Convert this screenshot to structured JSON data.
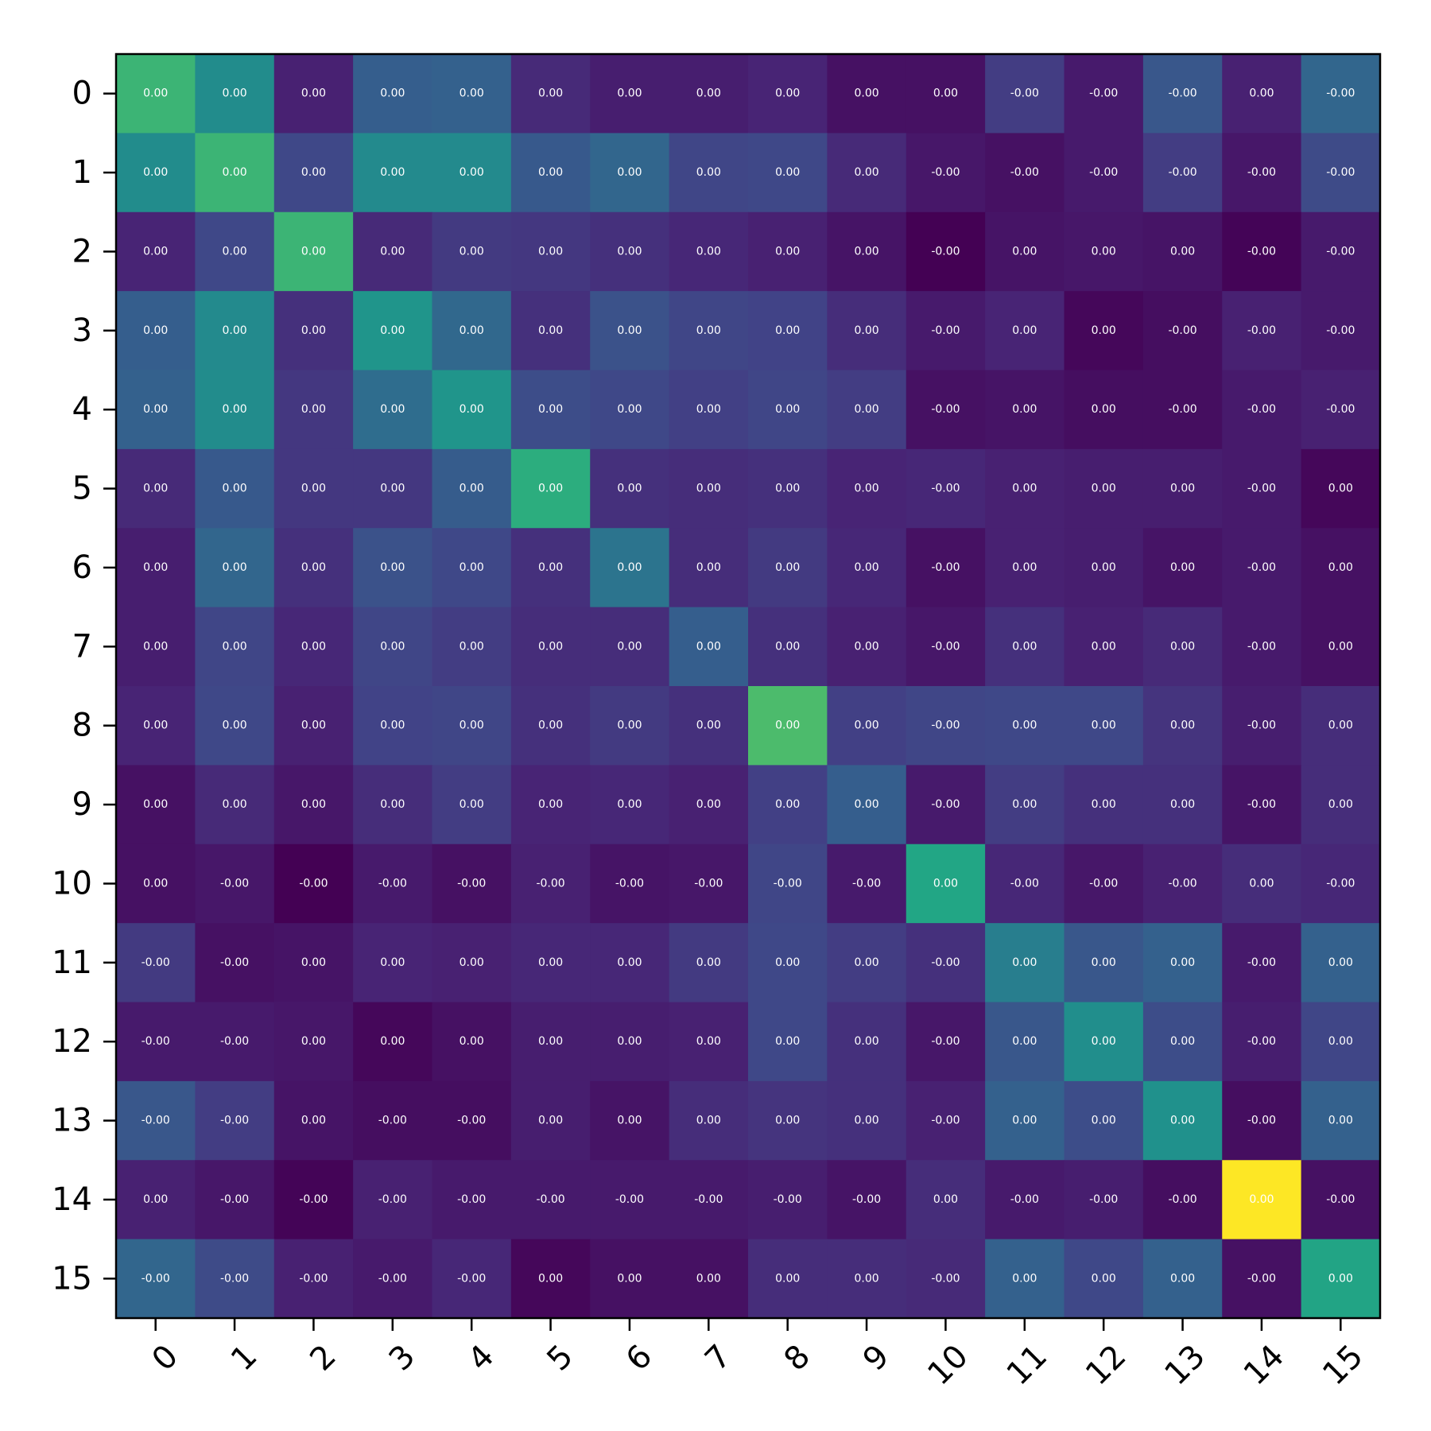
{
  "chart_data": {
    "type": "heatmap",
    "colormap": "viridis",
    "x_ticks": [
      "0",
      "1",
      "2",
      "3",
      "4",
      "5",
      "6",
      "7",
      "8",
      "9",
      "10",
      "11",
      "12",
      "13",
      "14",
      "15"
    ],
    "y_ticks": [
      "0",
      "1",
      "2",
      "3",
      "4",
      "5",
      "6",
      "7",
      "8",
      "9",
      "10",
      "11",
      "12",
      "13",
      "14",
      "15"
    ],
    "color_scale": [
      [
        0.62,
        0.46,
        0.05,
        0.27,
        0.28,
        0.08,
        0.04,
        0.04,
        0.06,
        0.0,
        0.0,
        0.14,
        0.03,
        0.24,
        0.05,
        0.3
      ],
      [
        0.46,
        0.62,
        0.18,
        0.45,
        0.45,
        0.25,
        0.3,
        0.17,
        0.18,
        0.08,
        0.02,
        0.0,
        0.03,
        0.14,
        0.02,
        0.19
      ],
      [
        0.06,
        0.18,
        0.62,
        0.08,
        0.13,
        0.12,
        0.1,
        0.07,
        0.05,
        0.01,
        -0.05,
        0.01,
        0.02,
        0.01,
        -0.04,
        0.03
      ],
      [
        0.27,
        0.45,
        0.1,
        0.5,
        0.31,
        0.1,
        0.22,
        0.17,
        0.16,
        0.09,
        0.03,
        0.06,
        -0.03,
        -0.01,
        0.05,
        0.03
      ],
      [
        0.28,
        0.46,
        0.12,
        0.33,
        0.5,
        0.2,
        0.18,
        0.15,
        0.17,
        0.14,
        0.0,
        0.01,
        -0.01,
        -0.01,
        0.03,
        0.05
      ],
      [
        0.08,
        0.25,
        0.12,
        0.12,
        0.26,
        0.6,
        0.1,
        0.09,
        0.1,
        0.06,
        0.07,
        0.05,
        0.04,
        0.04,
        0.03,
        -0.03
      ],
      [
        0.04,
        0.3,
        0.1,
        0.22,
        0.18,
        0.1,
        0.36,
        0.09,
        0.13,
        0.07,
        0.0,
        0.05,
        0.04,
        0.01,
        0.03,
        0.0
      ],
      [
        0.04,
        0.17,
        0.07,
        0.17,
        0.14,
        0.09,
        0.09,
        0.27,
        0.1,
        0.05,
        0.02,
        0.1,
        0.05,
        0.08,
        0.03,
        0.0
      ],
      [
        0.06,
        0.18,
        0.05,
        0.16,
        0.17,
        0.1,
        0.13,
        0.1,
        0.64,
        0.15,
        0.17,
        0.18,
        0.18,
        0.11,
        0.04,
        0.09
      ],
      [
        0.0,
        0.08,
        0.02,
        0.09,
        0.14,
        0.06,
        0.07,
        0.05,
        0.15,
        0.27,
        0.03,
        0.14,
        0.1,
        0.1,
        0.01,
        0.09
      ],
      [
        0.0,
        0.02,
        -0.05,
        0.03,
        0.0,
        0.05,
        0.01,
        0.02,
        0.17,
        0.03,
        0.58,
        0.07,
        0.02,
        0.05,
        0.09,
        0.07
      ],
      [
        0.13,
        0.0,
        0.01,
        0.06,
        0.05,
        0.07,
        0.07,
        0.13,
        0.18,
        0.14,
        0.1,
        0.4,
        0.24,
        0.28,
        0.03,
        0.28
      ],
      [
        0.03,
        0.03,
        0.02,
        -0.03,
        0.0,
        0.04,
        0.04,
        0.05,
        0.18,
        0.1,
        0.02,
        0.24,
        0.47,
        0.2,
        0.04,
        0.17
      ],
      [
        0.24,
        0.14,
        0.01,
        -0.01,
        -0.01,
        0.04,
        0.01,
        0.09,
        0.11,
        0.1,
        0.05,
        0.28,
        0.2,
        0.48,
        -0.01,
        0.28
      ],
      [
        0.05,
        0.02,
        -0.04,
        0.05,
        0.03,
        0.03,
        0.03,
        0.03,
        0.04,
        0.01,
        0.09,
        0.03,
        0.04,
        -0.01,
        0.8,
        0.0
      ],
      [
        0.3,
        0.19,
        0.05,
        0.03,
        0.07,
        -0.03,
        0.0,
        0.0,
        0.09,
        0.09,
        0.08,
        0.28,
        0.18,
        0.28,
        0.0,
        0.57
      ]
    ],
    "color_range": [
      -0.05,
      0.8
    ],
    "cell_labels": [
      [
        "0.00",
        "0.00",
        "0.00",
        "0.00",
        "0.00",
        "0.00",
        "0.00",
        "0.00",
        "0.00",
        "0.00",
        "0.00",
        "-0.00",
        "-0.00",
        "-0.00",
        "0.00",
        "-0.00"
      ],
      [
        "0.00",
        "0.00",
        "0.00",
        "0.00",
        "0.00",
        "0.00",
        "0.00",
        "0.00",
        "0.00",
        "0.00",
        "-0.00",
        "-0.00",
        "-0.00",
        "-0.00",
        "-0.00",
        "-0.00"
      ],
      [
        "0.00",
        "0.00",
        "0.00",
        "0.00",
        "0.00",
        "0.00",
        "0.00",
        "0.00",
        "0.00",
        "0.00",
        "-0.00",
        "0.00",
        "0.00",
        "0.00",
        "-0.00",
        "-0.00"
      ],
      [
        "0.00",
        "0.00",
        "0.00",
        "0.00",
        "0.00",
        "0.00",
        "0.00",
        "0.00",
        "0.00",
        "0.00",
        "-0.00",
        "0.00",
        "0.00",
        "-0.00",
        "-0.00",
        "-0.00"
      ],
      [
        "0.00",
        "0.00",
        "0.00",
        "0.00",
        "0.00",
        "0.00",
        "0.00",
        "0.00",
        "0.00",
        "0.00",
        "-0.00",
        "0.00",
        "0.00",
        "-0.00",
        "-0.00",
        "-0.00"
      ],
      [
        "0.00",
        "0.00",
        "0.00",
        "0.00",
        "0.00",
        "0.00",
        "0.00",
        "0.00",
        "0.00",
        "0.00",
        "-0.00",
        "0.00",
        "0.00",
        "0.00",
        "-0.00",
        "0.00"
      ],
      [
        "0.00",
        "0.00",
        "0.00",
        "0.00",
        "0.00",
        "0.00",
        "0.00",
        "0.00",
        "0.00",
        "0.00",
        "-0.00",
        "0.00",
        "0.00",
        "0.00",
        "-0.00",
        "0.00"
      ],
      [
        "0.00",
        "0.00",
        "0.00",
        "0.00",
        "0.00",
        "0.00",
        "0.00",
        "0.00",
        "0.00",
        "0.00",
        "-0.00",
        "0.00",
        "0.00",
        "0.00",
        "-0.00",
        "0.00"
      ],
      [
        "0.00",
        "0.00",
        "0.00",
        "0.00",
        "0.00",
        "0.00",
        "0.00",
        "0.00",
        "0.00",
        "0.00",
        "-0.00",
        "0.00",
        "0.00",
        "0.00",
        "-0.00",
        "0.00"
      ],
      [
        "0.00",
        "0.00",
        "0.00",
        "0.00",
        "0.00",
        "0.00",
        "0.00",
        "0.00",
        "0.00",
        "0.00",
        "-0.00",
        "0.00",
        "0.00",
        "0.00",
        "-0.00",
        "0.00"
      ],
      [
        "0.00",
        "-0.00",
        "-0.00",
        "-0.00",
        "-0.00",
        "-0.00",
        "-0.00",
        "-0.00",
        "-0.00",
        "-0.00",
        "0.00",
        "-0.00",
        "-0.00",
        "-0.00",
        "0.00",
        "-0.00"
      ],
      [
        "-0.00",
        "-0.00",
        "0.00",
        "0.00",
        "0.00",
        "0.00",
        "0.00",
        "0.00",
        "0.00",
        "0.00",
        "-0.00",
        "0.00",
        "0.00",
        "0.00",
        "-0.00",
        "0.00"
      ],
      [
        "-0.00",
        "-0.00",
        "0.00",
        "0.00",
        "0.00",
        "0.00",
        "0.00",
        "0.00",
        "0.00",
        "0.00",
        "-0.00",
        "0.00",
        "0.00",
        "0.00",
        "-0.00",
        "0.00"
      ],
      [
        "-0.00",
        "-0.00",
        "0.00",
        "-0.00",
        "-0.00",
        "0.00",
        "0.00",
        "0.00",
        "0.00",
        "0.00",
        "-0.00",
        "0.00",
        "0.00",
        "0.00",
        "-0.00",
        "0.00"
      ],
      [
        "0.00",
        "-0.00",
        "-0.00",
        "-0.00",
        "-0.00",
        "-0.00",
        "-0.00",
        "-0.00",
        "-0.00",
        "-0.00",
        "0.00",
        "-0.00",
        "-0.00",
        "-0.00",
        "0.00",
        "-0.00"
      ],
      [
        "-0.00",
        "-0.00",
        "-0.00",
        "-0.00",
        "-0.00",
        "0.00",
        "0.00",
        "0.00",
        "0.00",
        "0.00",
        "-0.00",
        "0.00",
        "0.00",
        "0.00",
        "-0.00",
        "0.00"
      ]
    ],
    "x_tick_rotation_deg": 45,
    "title": "",
    "xlabel": "",
    "ylabel": "",
    "colorbar": false,
    "grid": false,
    "colors": {
      "text": "#ffffff",
      "axis": "#000000",
      "background": "#ffffff"
    }
  }
}
